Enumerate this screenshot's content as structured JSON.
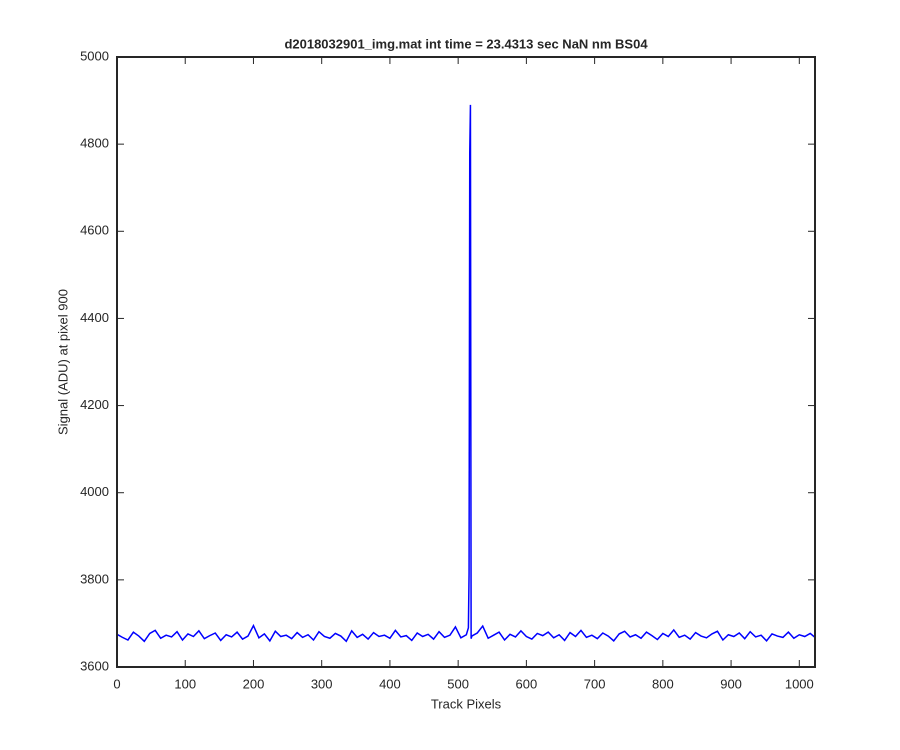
{
  "chart_data": {
    "type": "line",
    "title": "d2018032901_img.mat int time = 23.4313 sec  NaN nm BS04",
    "xlabel": "Track Pixels",
    "ylabel": "Signal (ADU) at pixel 900",
    "color": "#0000ff",
    "xlim": [
      0,
      1023
    ],
    "ylim": [
      3600,
      5000
    ],
    "xticks": [
      0,
      100,
      200,
      300,
      400,
      500,
      600,
      700,
      800,
      900,
      1000
    ],
    "yticks": [
      3600,
      3800,
      4000,
      4200,
      4400,
      4600,
      4800,
      5000
    ],
    "x": [
      0,
      8,
      16,
      24,
      32,
      40,
      48,
      56,
      64,
      72,
      80,
      88,
      96,
      104,
      112,
      120,
      128,
      136,
      144,
      152,
      160,
      168,
      176,
      184,
      192,
      200,
      208,
      216,
      224,
      232,
      240,
      248,
      256,
      264,
      272,
      280,
      288,
      296,
      304,
      312,
      320,
      328,
      336,
      344,
      352,
      360,
      368,
      376,
      384,
      392,
      400,
      408,
      416,
      424,
      432,
      440,
      448,
      456,
      464,
      472,
      480,
      488,
      496,
      504,
      512,
      515,
      516,
      517,
      518,
      519,
      520,
      528,
      536,
      544,
      552,
      560,
      568,
      576,
      584,
      592,
      600,
      608,
      616,
      624,
      632,
      640,
      648,
      656,
      664,
      672,
      680,
      688,
      696,
      704,
      712,
      720,
      728,
      736,
      744,
      752,
      760,
      768,
      776,
      784,
      792,
      800,
      808,
      816,
      824,
      832,
      840,
      848,
      856,
      864,
      872,
      880,
      888,
      896,
      904,
      912,
      920,
      928,
      936,
      944,
      952,
      960,
      968,
      976,
      984,
      992,
      1000,
      1008,
      1016,
      1023
    ],
    "values": [
      3675,
      3668,
      3662,
      3680,
      3671,
      3659,
      3677,
      3684,
      3666,
      3673,
      3669,
      3681,
      3662,
      3676,
      3670,
      3683,
      3665,
      3672,
      3678,
      3661,
      3674,
      3669,
      3680,
      3664,
      3671,
      3695,
      3667,
      3676,
      3660,
      3682,
      3670,
      3673,
      3665,
      3679,
      3668,
      3674,
      3662,
      3681,
      3670,
      3666,
      3677,
      3671,
      3659,
      3683,
      3668,
      3675,
      3664,
      3679,
      3670,
      3673,
      3666,
      3684,
      3669,
      3672,
      3661,
      3678,
      3670,
      3675,
      3664,
      3681,
      3668,
      3673,
      3692,
      3667,
      3674,
      3690,
      3815,
      4780,
      4890,
      3665,
      3671,
      3678,
      3694,
      3666,
      3673,
      3680,
      3662,
      3675,
      3669,
      3683,
      3670,
      3664,
      3677,
      3672,
      3680,
      3667,
      3674,
      3661,
      3679,
      3670,
      3684,
      3668,
      3673,
      3665,
      3678,
      3671,
      3660,
      3676,
      3682,
      3669,
      3674,
      3666,
      3680,
      3672,
      3663,
      3677,
      3670,
      3685,
      3668,
      3673,
      3664,
      3679,
      3671,
      3667,
      3676,
      3682,
      3662,
      3674,
      3670,
      3678,
      3665,
      3681,
      3669,
      3673,
      3660,
      3676,
      3671,
      3668,
      3680,
      3666,
      3674,
      3670,
      3677,
      3668
    ]
  }
}
